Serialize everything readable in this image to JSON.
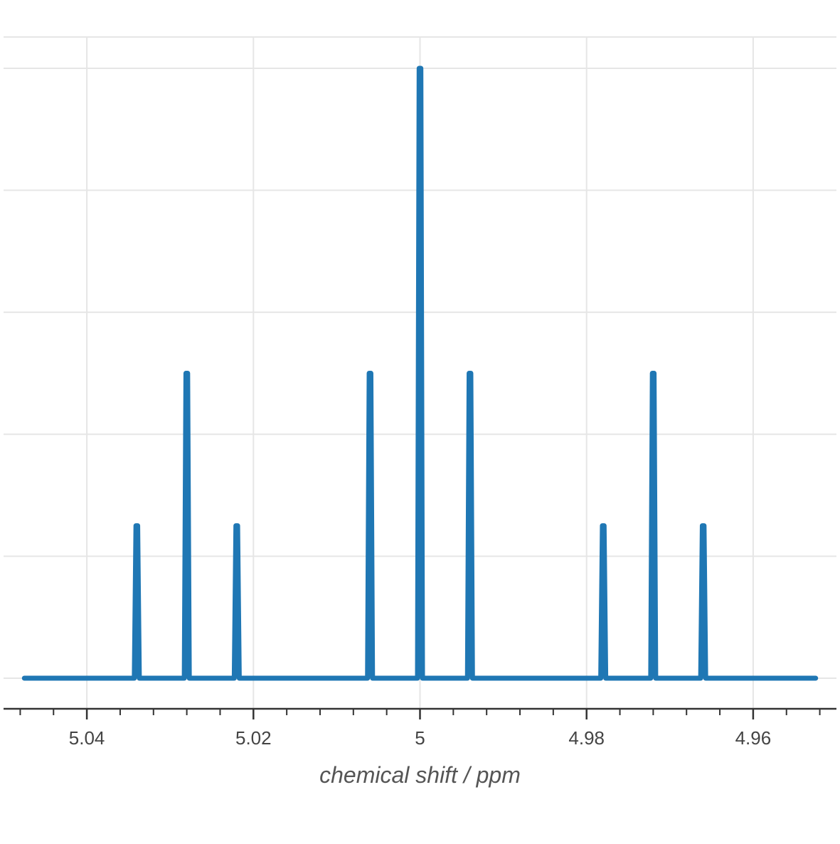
{
  "chart_data": {
    "type": "line",
    "title": "",
    "xlabel": "chemical shift / ppm",
    "ylabel": "",
    "x_reversed": true,
    "xlim": [
      5.05,
      4.95
    ],
    "ylim": [
      0,
      1.0
    ],
    "grid": true,
    "legend": "none",
    "x_ticks": [
      5.04,
      5.02,
      5,
      4.98,
      4.96
    ],
    "x_tick_labels": [
      "5.04",
      "5.02",
      "5",
      "4.98",
      "4.96"
    ],
    "x_minor_step": 0.004,
    "y_grid_values": [
      0,
      0.2,
      0.4,
      0.6,
      0.8,
      1.0
    ],
    "line_range": [
      5.0475,
      4.9525
    ],
    "peak_halfwidth": 0.0003,
    "series": [
      {
        "color": "#1f77b4",
        "peaks": [
          {
            "x": 5.034,
            "y": 0.25
          },
          {
            "x": 5.028,
            "y": 0.5
          },
          {
            "x": 5.022,
            "y": 0.25
          },
          {
            "x": 5.006,
            "y": 0.5
          },
          {
            "x": 5.0,
            "y": 1.0
          },
          {
            "x": 4.994,
            "y": 0.5
          },
          {
            "x": 4.978,
            "y": 0.25
          },
          {
            "x": 4.972,
            "y": 0.5
          },
          {
            "x": 4.966,
            "y": 0.25
          }
        ]
      }
    ]
  }
}
